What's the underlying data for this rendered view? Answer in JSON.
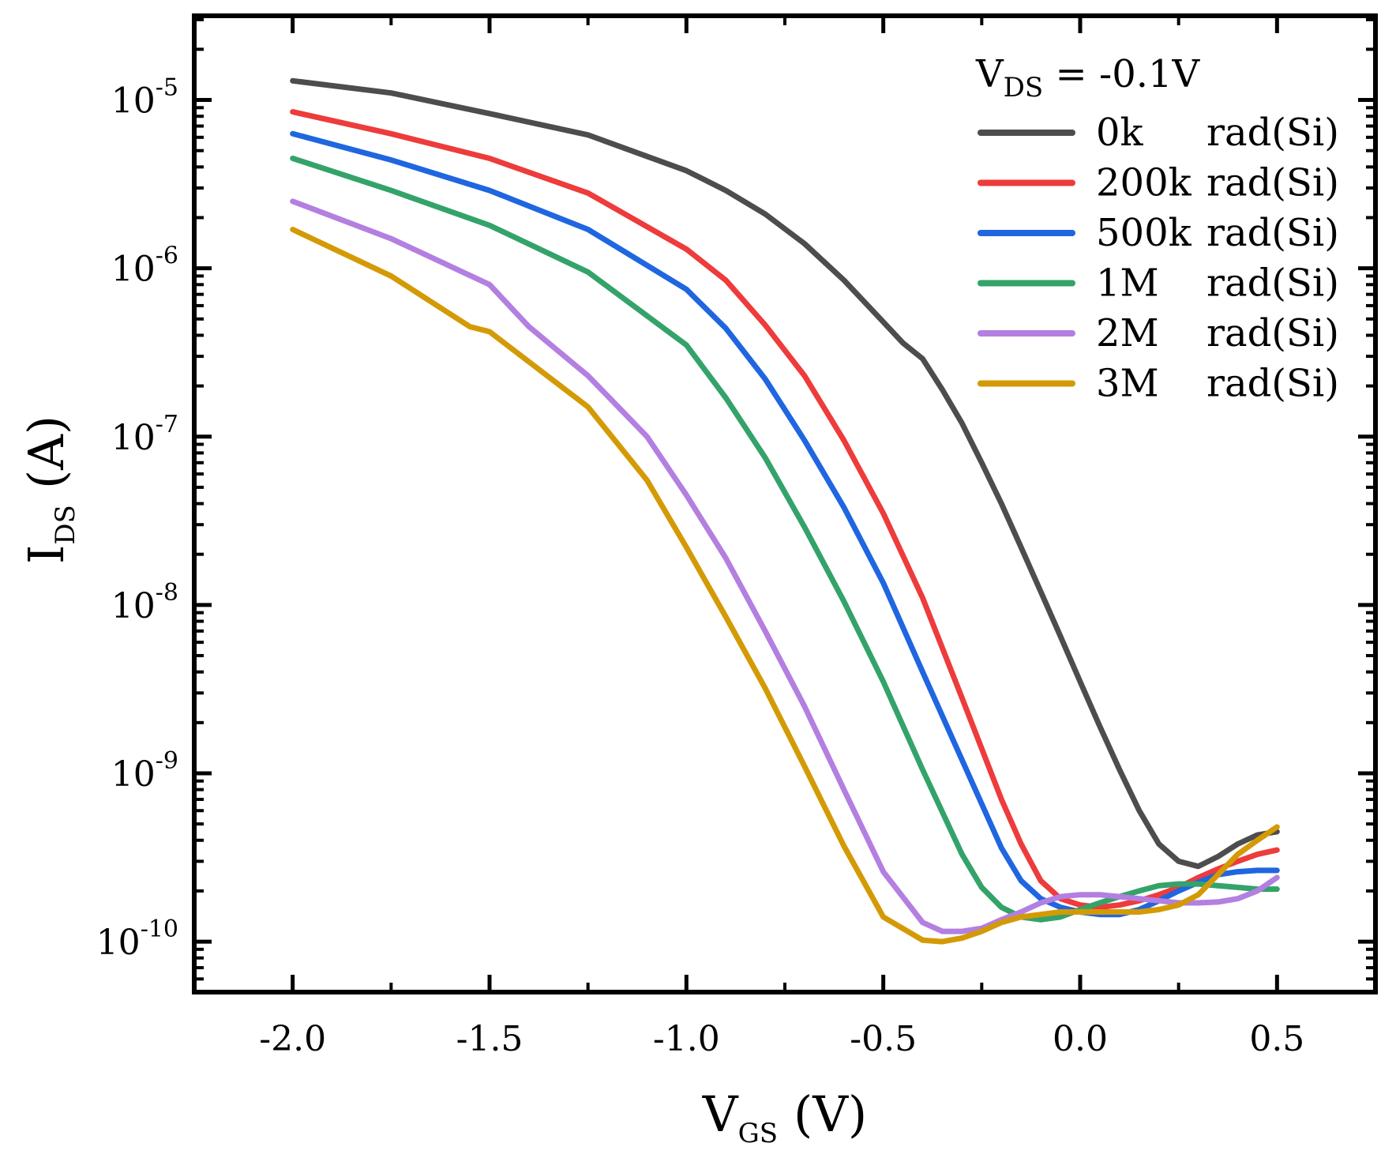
{
  "chart_data": {
    "type": "line",
    "title": "",
    "xlabel": {
      "main": "V",
      "sub": "GS",
      "unit": "(V)"
    },
    "ylabel": {
      "main": "I",
      "sub": "DS",
      "unit": "(A)"
    },
    "xlim": [
      -2.25,
      0.75
    ],
    "ylim_log10": [
      -10.3,
      -4.5
    ],
    "y_scale": "log",
    "x_ticks": [
      {
        "value": -2.0,
        "label": "-2.0"
      },
      {
        "value": -1.5,
        "label": "-1.5"
      },
      {
        "value": -1.0,
        "label": "-1.0"
      },
      {
        "value": -0.5,
        "label": "-0.5"
      },
      {
        "value": 0.0,
        "label": "0.0"
      },
      {
        "value": 0.5,
        "label": "0.5"
      }
    ],
    "y_ticks": [
      {
        "exp": -5,
        "base": "10",
        "label": "-5"
      },
      {
        "exp": -6,
        "base": "10",
        "label": "-6"
      },
      {
        "exp": -7,
        "base": "10",
        "label": "-7"
      },
      {
        "exp": -8,
        "base": "10",
        "label": "-8"
      },
      {
        "exp": -9,
        "base": "10",
        "label": "-9"
      },
      {
        "exp": -10,
        "base": "10",
        "label": "-10"
      }
    ],
    "legend": {
      "position": "top-right",
      "title": {
        "main": "V",
        "sub": "DS",
        "rest": " = -0.1V"
      }
    },
    "series": [
      {
        "name": "0k",
        "unit": "rad(Si)",
        "color": "#4d4d4d",
        "x": [
          -2.0,
          -1.75,
          -1.5,
          -1.25,
          -1.0,
          -0.9,
          -0.8,
          -0.7,
          -0.6,
          -0.5,
          -0.45,
          -0.4,
          -0.35,
          -0.3,
          -0.25,
          -0.2,
          -0.15,
          -0.1,
          -0.05,
          0.0,
          0.05,
          0.1,
          0.15,
          0.2,
          0.25,
          0.3,
          0.35,
          0.4,
          0.45,
          0.5
        ],
        "y": [
          1.3e-05,
          1.1e-05,
          8.3e-06,
          6.2e-06,
          3.8e-06,
          2.9e-06,
          2.1e-06,
          1.4e-06,
          8.5e-07,
          4.8e-07,
          3.6e-07,
          2.9e-07,
          1.9e-07,
          1.2e-07,
          7e-08,
          4e-08,
          2.2e-08,
          1.2e-08,
          6.5e-09,
          3.5e-09,
          1.9e-09,
          1.05e-09,
          6e-10,
          3.8e-10,
          3e-10,
          2.8e-10,
          3.2e-10,
          3.8e-10,
          4.3e-10,
          4.5e-10
        ]
      },
      {
        "name": "200k",
        "unit": "rad(Si)",
        "color": "#ee3b3b",
        "x": [
          -2.0,
          -1.75,
          -1.5,
          -1.25,
          -1.0,
          -0.9,
          -0.8,
          -0.7,
          -0.6,
          -0.5,
          -0.4,
          -0.3,
          -0.2,
          -0.15,
          -0.1,
          -0.05,
          0.0,
          0.05,
          0.1,
          0.15,
          0.2,
          0.25,
          0.3,
          0.35,
          0.4,
          0.45,
          0.5
        ],
        "y": [
          8.5e-06,
          6.3e-06,
          4.5e-06,
          2.8e-06,
          1.3e-06,
          8.5e-07,
          4.6e-07,
          2.3e-07,
          9.5e-08,
          3.5e-08,
          1.1e-08,
          2.8e-09,
          7e-10,
          3.8e-10,
          2.3e-10,
          1.8e-10,
          1.65e-10,
          1.6e-10,
          1.65e-10,
          1.75e-10,
          1.9e-10,
          2.1e-10,
          2.4e-10,
          2.7e-10,
          3e-10,
          3.3e-10,
          3.5e-10
        ]
      },
      {
        "name": "500k",
        "unit": "rad(Si)",
        "color": "#1f66e0",
        "x": [
          -2.0,
          -1.75,
          -1.5,
          -1.25,
          -1.0,
          -0.9,
          -0.8,
          -0.7,
          -0.6,
          -0.5,
          -0.4,
          -0.3,
          -0.2,
          -0.15,
          -0.1,
          -0.05,
          0.0,
          0.05,
          0.1,
          0.15,
          0.2,
          0.25,
          0.3,
          0.35,
          0.4,
          0.45,
          0.5
        ],
        "y": [
          6.3e-06,
          4.4e-06,
          2.9e-06,
          1.7e-06,
          7.5e-07,
          4.4e-07,
          2.2e-07,
          9.5e-08,
          3.8e-08,
          1.35e-08,
          4e-09,
          1.2e-09,
          3.6e-10,
          2.3e-10,
          1.8e-10,
          1.6e-10,
          1.5e-10,
          1.45e-10,
          1.45e-10,
          1.55e-10,
          1.75e-10,
          2e-10,
          2.25e-10,
          2.5e-10,
          2.6e-10,
          2.65e-10,
          2.65e-10
        ]
      },
      {
        "name": "1M",
        "unit": "rad(Si)",
        "color": "#34a36a",
        "x": [
          -2.0,
          -1.75,
          -1.5,
          -1.25,
          -1.0,
          -0.9,
          -0.8,
          -0.7,
          -0.6,
          -0.5,
          -0.4,
          -0.3,
          -0.25,
          -0.2,
          -0.15,
          -0.1,
          -0.05,
          0.0,
          0.05,
          0.1,
          0.15,
          0.2,
          0.25,
          0.3,
          0.35,
          0.4,
          0.45,
          0.5
        ],
        "y": [
          4.5e-06,
          2.9e-06,
          1.8e-06,
          9.5e-07,
          3.5e-07,
          1.7e-07,
          7.5e-08,
          2.9e-08,
          1.05e-08,
          3.5e-09,
          1.05e-09,
          3.3e-10,
          2.1e-10,
          1.6e-10,
          1.4e-10,
          1.35e-10,
          1.4e-10,
          1.55e-10,
          1.7e-10,
          1.85e-10,
          2e-10,
          2.15e-10,
          2.2e-10,
          2.2e-10,
          2.15e-10,
          2.1e-10,
          2.05e-10,
          2.05e-10
        ]
      },
      {
        "name": "2M",
        "unit": "rad(Si)",
        "color": "#b37fe0",
        "x": [
          -2.0,
          -1.75,
          -1.5,
          -1.4,
          -1.25,
          -1.1,
          -1.0,
          -0.9,
          -0.8,
          -0.7,
          -0.6,
          -0.5,
          -0.4,
          -0.35,
          -0.3,
          -0.25,
          -0.2,
          -0.15,
          -0.1,
          -0.05,
          0.0,
          0.05,
          0.1,
          0.15,
          0.2,
          0.25,
          0.3,
          0.35,
          0.4,
          0.45,
          0.5
        ],
        "y": [
          2.5e-06,
          1.5e-06,
          8e-07,
          4.5e-07,
          2.3e-07,
          1e-07,
          4.5e-08,
          1.9e-08,
          7e-09,
          2.5e-09,
          8e-10,
          2.6e-10,
          1.3e-10,
          1.15e-10,
          1.15e-10,
          1.2e-10,
          1.35e-10,
          1.5e-10,
          1.7e-10,
          1.85e-10,
          1.9e-10,
          1.9e-10,
          1.85e-10,
          1.8e-10,
          1.75e-10,
          1.7e-10,
          1.7e-10,
          1.72e-10,
          1.8e-10,
          2e-10,
          2.4e-10
        ]
      },
      {
        "name": "3M",
        "unit": "rad(Si)",
        "color": "#d49a06",
        "x": [
          -2.0,
          -1.75,
          -1.55,
          -1.5,
          -1.25,
          -1.1,
          -1.0,
          -0.9,
          -0.8,
          -0.7,
          -0.6,
          -0.5,
          -0.4,
          -0.35,
          -0.3,
          -0.25,
          -0.2,
          -0.15,
          -0.1,
          -0.05,
          0.0,
          0.05,
          0.1,
          0.15,
          0.2,
          0.25,
          0.3,
          0.35,
          0.4,
          0.45,
          0.5
        ],
        "y": [
          1.7e-06,
          9e-07,
          4.5e-07,
          4.2e-07,
          1.5e-07,
          5.5e-08,
          2.2e-08,
          8.5e-09,
          3.2e-09,
          1.1e-09,
          3.7e-10,
          1.4e-10,
          1.02e-10,
          1e-10,
          1.05e-10,
          1.15e-10,
          1.3e-10,
          1.4e-10,
          1.45e-10,
          1.5e-10,
          1.5e-10,
          1.5e-10,
          1.5e-10,
          1.5e-10,
          1.55e-10,
          1.65e-10,
          1.9e-10,
          2.5e-10,
          3.3e-10,
          4e-10,
          4.8e-10
        ]
      }
    ]
  }
}
